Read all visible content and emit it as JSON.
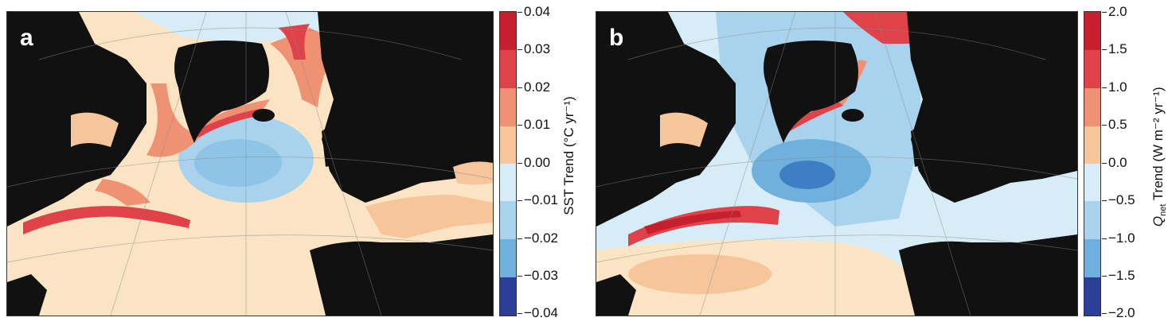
{
  "colors": {
    "land": "#111111",
    "ice": "#d9ecf6",
    "neutral_warm": "#fbe4c3",
    "neutral_cool": "#d6ecf7",
    "warm_1": "#f6c59a",
    "warm_2": "#ef9274",
    "warm_3": "#e0424a",
    "warm_4": "#c71f2d",
    "cool_1": "#a9d3ec",
    "cool_2": "#6fb0dd",
    "cool_3": "#3e7fc4",
    "cool_4": "#2b3f98"
  },
  "panels": [
    {
      "id": "a",
      "letter": "a",
      "colorbar": {
        "label": "SST Trend (°C yr⁻¹)",
        "ticks": [
          "0.04",
          "0.03",
          "0.02",
          "0.01",
          "0.00",
          "−0.01",
          "−0.02",
          "−0.03",
          "−0.04"
        ]
      },
      "field": "sea surface temperature trend"
    },
    {
      "id": "b",
      "letter": "b",
      "colorbar": {
        "label_main": "Q",
        "label_sub": "net",
        "label_rest": " Trend (W m⁻² yr⁻¹)",
        "ticks": [
          "2.0",
          "1.5",
          "1.0",
          "0.5",
          "0.0",
          "−0.5",
          "−1.0",
          "−1.5",
          "−2.0"
        ]
      },
      "field": "net heat flux trend"
    }
  ]
}
